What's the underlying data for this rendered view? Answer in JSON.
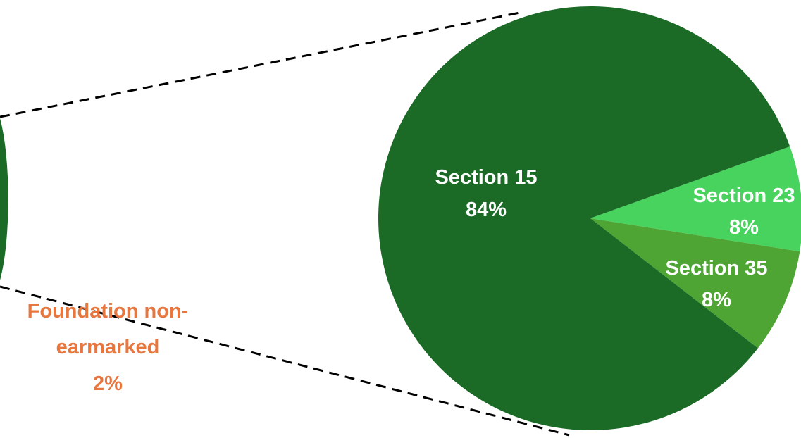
{
  "chart_data": {
    "type": "pie",
    "subtype": "bar-of-pie (partial view)",
    "title": "",
    "colors": {
      "section_15": "#1b6b27",
      "section_23": "#47d35e",
      "section_35": "#4ea534",
      "foundation_non_earmarked": "#e8773f",
      "connector": "#000000"
    },
    "primary_pie_visible_slice": {
      "name_lines": [
        "Foundation non-",
        "earmarked"
      ],
      "value_label": "2%",
      "value": 2
    },
    "secondary_pie": {
      "slices": [
        {
          "name": "Section 15",
          "value_label": "84%",
          "value": 84,
          "color": "#1b6b27"
        },
        {
          "name": "Section 23",
          "value_label": "8%",
          "value": 8,
          "color": "#47d35e"
        },
        {
          "name": "Section 35",
          "value_label": "8%",
          "value": 8,
          "color": "#4ea534"
        }
      ]
    },
    "connector_lines": "dashed",
    "legend": "none"
  }
}
